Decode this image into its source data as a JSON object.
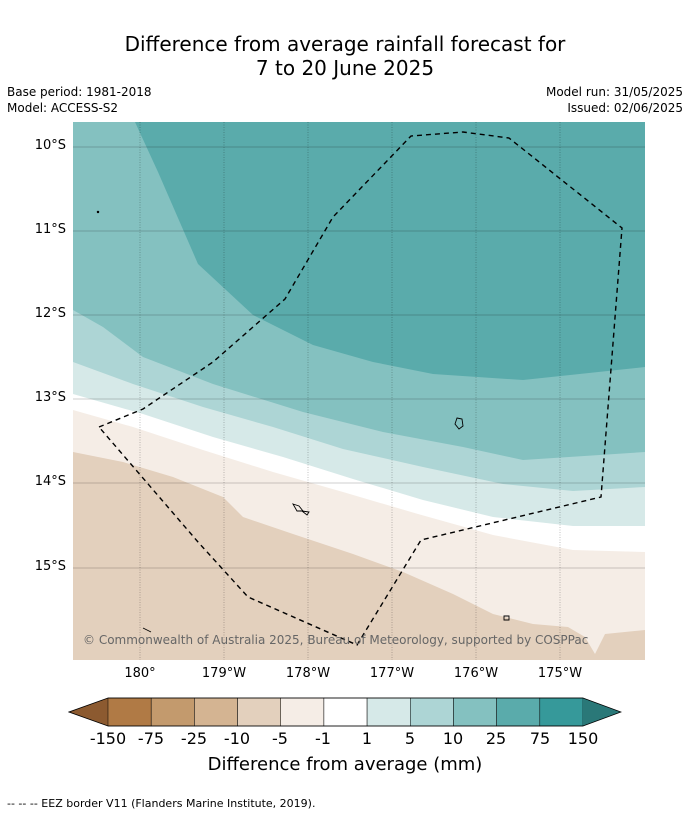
{
  "title_line1": "Difference from average rainfall forecast for",
  "title_line2": "7 to 20 June 2025",
  "base_period": "Base period: 1981-2018",
  "model": "Model: ACCESS-S2",
  "model_run": "Model run: 31/05/2025",
  "issued": "Issued: 02/06/2025",
  "lat_ticks": [
    "10°S",
    "11°S",
    "12°S",
    "13°S",
    "14°S",
    "15°S"
  ],
  "lon_ticks": [
    "180°",
    "179°W",
    "178°W",
    "177°W",
    "176°W",
    "175°W"
  ],
  "copyright": "© Commonwealth of Australia 2025, Bureau of Meteorology, supported by COSPPac",
  "colorbar": {
    "title": "Difference from average (mm)",
    "labels": [
      "-150",
      "-75",
      "-25",
      "-10",
      "-5",
      "-1",
      "1",
      "5",
      "10",
      "25",
      "75",
      "150"
    ],
    "colors": [
      "#8c5a30",
      "#b07a45",
      "#c39a6d",
      "#d4b492",
      "#e3d0bd",
      "#f5ede6",
      "#ffffff",
      "#d6e9e8",
      "#add5d5",
      "#84c1c0",
      "#5aabab",
      "#36999a",
      "#2a7878"
    ]
  },
  "footnote": "--  --  -- EEZ border V11 (Flanders Marine Institute, 2019)."
}
